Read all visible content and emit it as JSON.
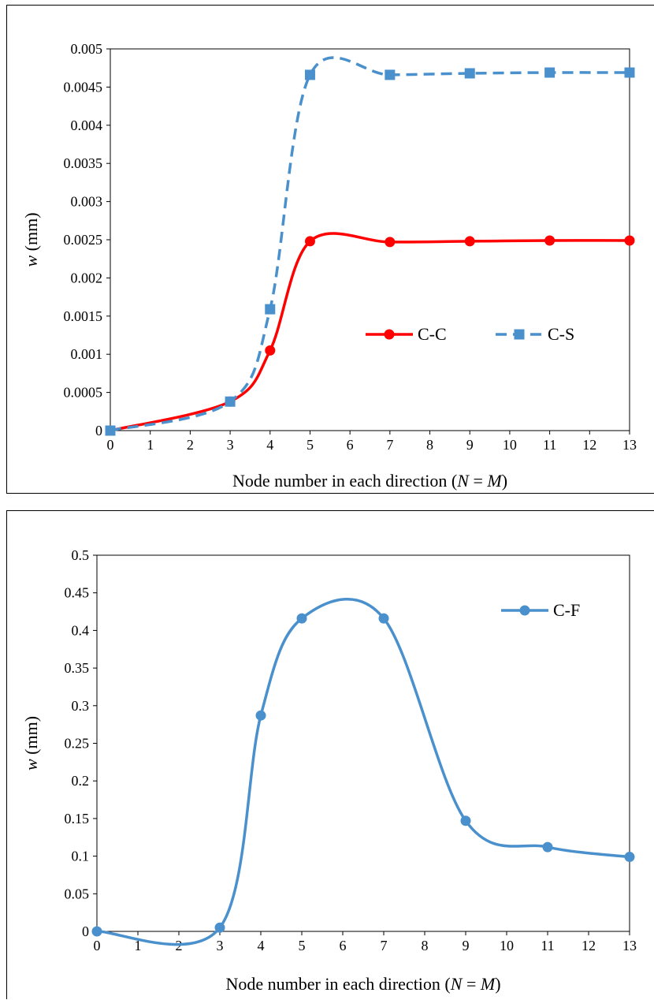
{
  "chart_data": [
    {
      "type": "line",
      "xlabel": {
        "prefix": "Node number in each direction (",
        "v1": "N",
        "mid": " = ",
        "v2": "M",
        "suffix": ")"
      },
      "ylabel": {
        "var": "w",
        "unit": " (mm)"
      },
      "x_ticks": [
        "0",
        "1",
        "2",
        "3",
        "4",
        "5",
        "6",
        "7",
        "8",
        "9",
        "10",
        "11",
        "12",
        "13"
      ],
      "y_ticks": [
        "0",
        "0.0005",
        "0.001",
        "0.0015",
        "0.002",
        "0.0025",
        "0.003",
        "0.0035",
        "0.004",
        "0.0045",
        "0.005"
      ],
      "ylim": [
        0,
        0.005
      ],
      "x_axis": "categorical positions 0..13",
      "grid": false,
      "legend": "center-right",
      "series": [
        {
          "name": "C-C",
          "color": "#ff0000",
          "line_style": "solid",
          "marker": "circle",
          "smooth": true,
          "x": [
            0,
            3,
            4,
            5,
            7,
            9,
            11,
            13
          ],
          "y": [
            0,
            0.00038,
            0.00105,
            0.00248,
            0.00247,
            0.00248,
            0.00249,
            0.00249
          ]
        },
        {
          "name": "C-S",
          "color": "#4a90cc",
          "line_style": "dashed",
          "marker": "square",
          "smooth": true,
          "x": [
            0,
            3,
            4,
            5,
            7,
            9,
            11,
            13
          ],
          "y": [
            0,
            0.00038,
            0.00159,
            0.00466,
            0.00466,
            0.00468,
            0.00469,
            0.00469
          ]
        }
      ]
    },
    {
      "type": "line",
      "xlabel": {
        "prefix": "Node number in each direction (",
        "v1": "N",
        "mid": " = ",
        "v2": "M",
        "suffix": ")"
      },
      "ylabel": {
        "var": "w",
        "unit": " (mm)"
      },
      "x_ticks": [
        "0",
        "1",
        "2",
        "3",
        "4",
        "5",
        "6",
        "7",
        "8",
        "9",
        "10",
        "11",
        "12",
        "13"
      ],
      "y_ticks": [
        "0",
        "0.05",
        "0.1",
        "0.15",
        "0.2",
        "0.25",
        "0.3",
        "0.35",
        "0.4",
        "0.45",
        "0.5"
      ],
      "ylim": [
        0,
        0.5
      ],
      "x_axis": "categorical positions 0..13",
      "grid": false,
      "legend": "top-right",
      "series": [
        {
          "name": "C-F",
          "color": "#4a90cc",
          "line_style": "solid",
          "marker": "circle",
          "smooth": true,
          "x": [
            0,
            3,
            4,
            5,
            7,
            9,
            11,
            13
          ],
          "y": [
            0,
            0.005,
            0.287,
            0.416,
            0.416,
            0.147,
            0.112,
            0.099
          ]
        }
      ]
    }
  ]
}
